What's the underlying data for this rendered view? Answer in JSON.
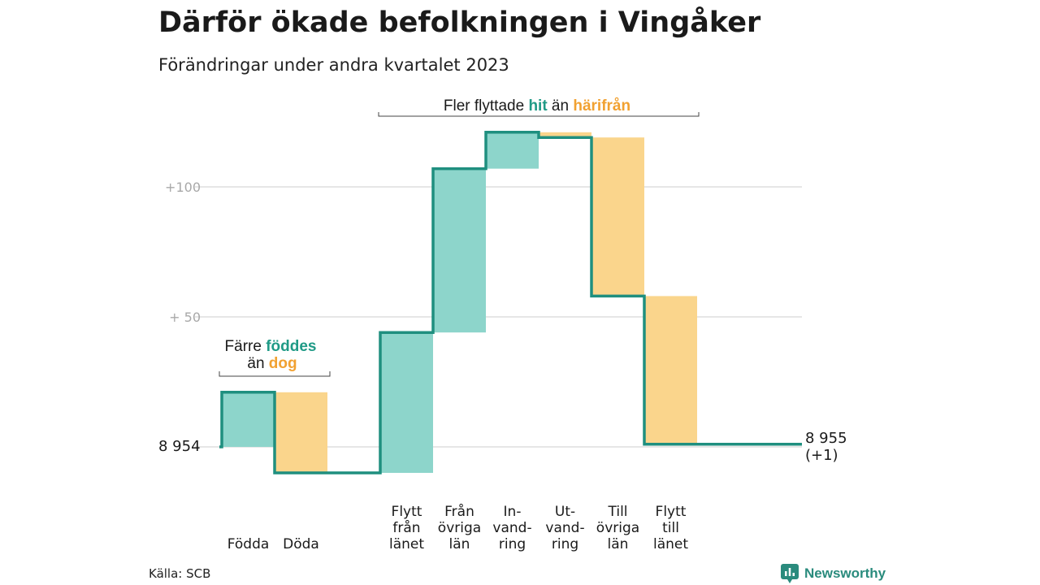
{
  "title": "Därför ökade befolkningen i Vingåker",
  "subtitle": "Förändringar under andra kvartalet 2023",
  "source": "Källa: SCB",
  "brand": "Newsworthy",
  "colors": {
    "inflow": "#8dd5cb",
    "outflow": "#fad58c",
    "line": "#1f8f7f",
    "grid": "#dddddd",
    "accent_in": "#1f9a86",
    "accent_out": "#f1a131"
  },
  "annotations": {
    "births": {
      "line1_prefix": "Färre ",
      "line1_hl": "föddes",
      "line2_prefix": "än ",
      "line2_hl": "dog"
    },
    "moves": {
      "prefix": "Fler flyttade ",
      "hl_in": "hit",
      "middle": " än ",
      "hl_out": "härifrån"
    }
  },
  "chart_data": {
    "type": "waterfall",
    "start_value": 8954,
    "start_label": "8  954",
    "end_label_1": "8 955",
    "end_label_2": "(+1)",
    "yticks": [
      {
        "label": "+100",
        "value": 100
      },
      {
        "label": "+  50",
        "value": 50
      }
    ],
    "categories": [
      {
        "lines": [
          "Födda"
        ],
        "change": 21,
        "direction": "in"
      },
      {
        "lines": [
          "Döda"
        ],
        "change": -31,
        "direction": "out"
      },
      {
        "lines": [
          "Flytt",
          "från",
          "länet"
        ],
        "change": 54,
        "direction": "in"
      },
      {
        "lines": [
          "Från",
          "övriga",
          "län"
        ],
        "change": 63,
        "direction": "in"
      },
      {
        "lines": [
          "In-",
          "vand-",
          "ring"
        ],
        "change": 14,
        "direction": "in"
      },
      {
        "lines": [
          "Ut-",
          "vand-",
          "ring"
        ],
        "change": -2,
        "direction": "out"
      },
      {
        "lines": [
          "Till",
          "övriga",
          "län"
        ],
        "change": -61,
        "direction": "out"
      },
      {
        "lines": [
          "Flytt",
          "till",
          "länet"
        ],
        "change": -57,
        "direction": "out"
      }
    ]
  }
}
